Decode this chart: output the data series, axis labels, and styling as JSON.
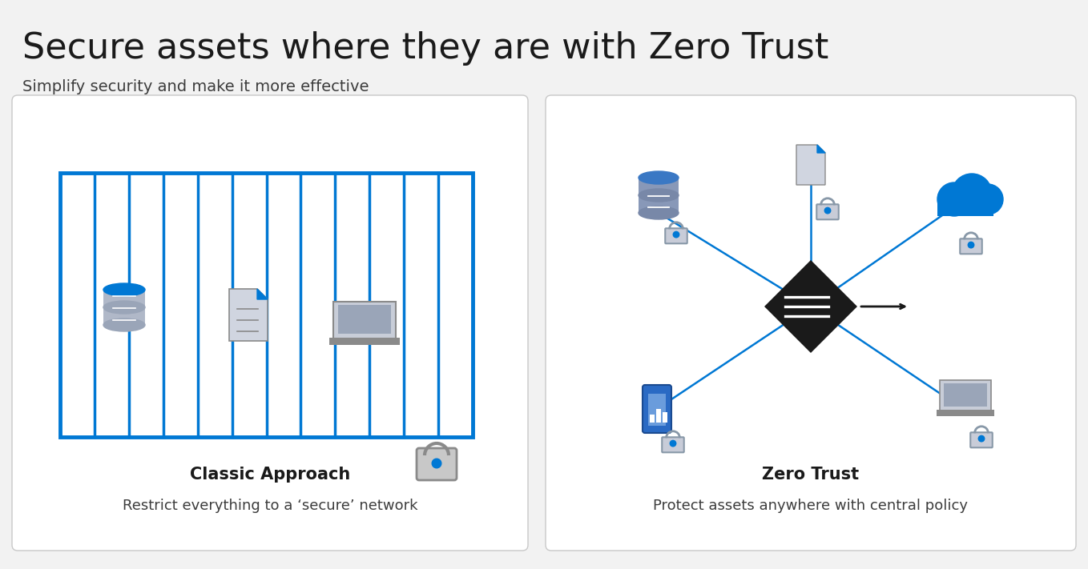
{
  "title": "Secure assets where they are with Zero Trust",
  "subtitle": "Simplify security and make it more effective",
  "title_fontsize": 32,
  "subtitle_fontsize": 14,
  "bg_color": "#f2f2f2",
  "card_bg": "#ffffff",
  "blue": "#0078d4",
  "gray": "#8a8a8a",
  "dark_gray": "#3c3c3c",
  "light_gray": "#c8c8c8",
  "black": "#1a1a1a",
  "classic_title": "Classic Approach",
  "classic_desc": "Restrict everything to a ‘secure’ network",
  "zt_title": "Zero Trust",
  "zt_desc": "Protect assets anywhere with central policy"
}
